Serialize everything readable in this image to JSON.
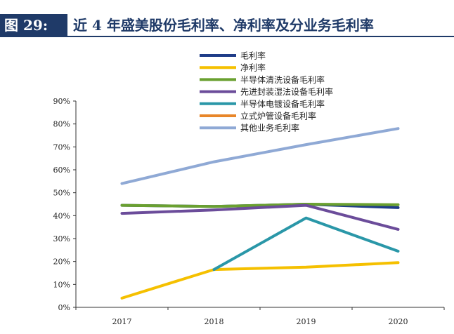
{
  "header": {
    "figure_number": "图 29:",
    "title": "近 4 年盛美股份毛利率、净利率及分业务毛利率"
  },
  "chart_data": {
    "type": "line",
    "title": "近 4 年盛美股份毛利率、净利率及分业务毛利率",
    "xlabel": "",
    "ylabel": "",
    "x": [
      "2017",
      "2018",
      "2019",
      "2020"
    ],
    "y_ticks": [
      "0%",
      "10%",
      "20%",
      "30%",
      "40%",
      "50%",
      "60%",
      "70%",
      "80%",
      "90%"
    ],
    "ylim": [
      0,
      90
    ],
    "legend_position": "top-right",
    "grid": false,
    "series": [
      {
        "name": "毛利率",
        "color": "#1f3c88",
        "values": [
          44.5,
          44.0,
          45.0,
          43.5
        ]
      },
      {
        "name": "净利率",
        "color": "#f5c000",
        "values": [
          4.0,
          16.5,
          17.5,
          19.5
        ]
      },
      {
        "name": "半导体清洗设备毛利率",
        "color": "#6aa030",
        "values": [
          44.5,
          44.0,
          45.0,
          44.8
        ]
      },
      {
        "name": "先进封装湿法设备毛利率",
        "color": "#6b4c9a",
        "values": [
          41.0,
          42.5,
          44.5,
          34.0
        ]
      },
      {
        "name": "半导体电镀设备毛利率",
        "color": "#2a97a8",
        "values": [
          null,
          16.5,
          39.0,
          24.5
        ]
      },
      {
        "name": "立式炉管设备毛利率",
        "color": "#e8862a",
        "values": [
          null,
          null,
          null,
          null
        ]
      },
      {
        "name": "其他业务毛利率",
        "color": "#8fa9d5",
        "values": [
          54.0,
          63.5,
          71.0,
          78.0
        ]
      }
    ]
  }
}
